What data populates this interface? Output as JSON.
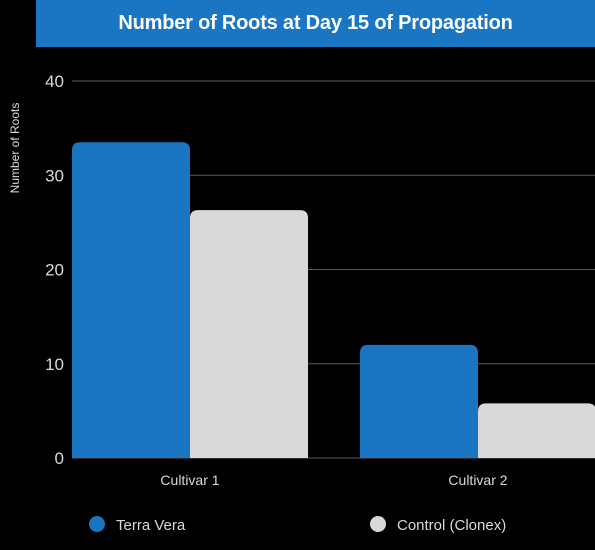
{
  "chart_data": {
    "type": "bar",
    "title": "Number of Roots at Day 15 of Propagation",
    "ylabel": "Number of Roots",
    "xlabel": "",
    "categories": [
      "Cultivar 1",
      "Cultivar 2"
    ],
    "ylim": [
      0,
      40
    ],
    "yticks": [
      0,
      10,
      20,
      30,
      40
    ],
    "grid": true,
    "legend_position": "bottom",
    "series": [
      {
        "name": "Terra Vera",
        "values": [
          33.5,
          12
        ],
        "color": "#1a75c2"
      },
      {
        "name": "Control (Clonex)",
        "values": [
          26.3,
          5.8
        ],
        "color": "#d9d9d9"
      }
    ]
  }
}
